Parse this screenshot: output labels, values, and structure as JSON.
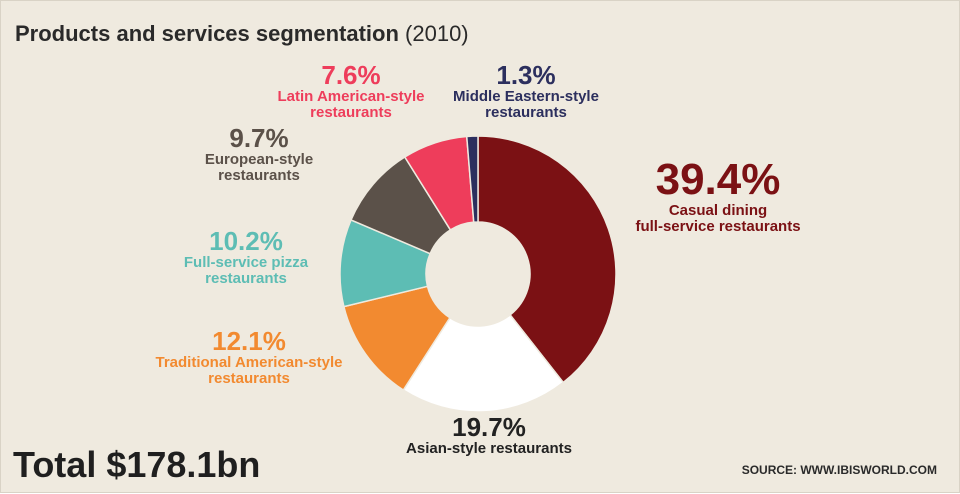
{
  "header": {
    "title": "Products and services segmentation",
    "year": "(2010)"
  },
  "footer": {
    "total": "Total $178.1bn",
    "source": "SOURCE: WWW.IBISWORLD.COM"
  },
  "chart_data": {
    "type": "pie",
    "variant": "donut",
    "title": "Products and services segmentation (2010)",
    "slices": [
      {
        "pct_label": "39.4%",
        "name_lines": [
          "Casual dining",
          "full-service restaurants"
        ],
        "value": 39.4,
        "color": "#7b1114"
      },
      {
        "pct_label": "19.7%",
        "name_lines": [
          "Asian-style restaurants"
        ],
        "value": 19.7,
        "color": "#ffffff"
      },
      {
        "pct_label": "12.1%",
        "name_lines": [
          "Traditional American-style",
          "restaurants"
        ],
        "value": 12.1,
        "color": "#f28a30"
      },
      {
        "pct_label": "10.2%",
        "name_lines": [
          "Full-service pizza",
          "restaurants"
        ],
        "value": 10.2,
        "color": "#5dbdb4"
      },
      {
        "pct_label": "9.7%",
        "name_lines": [
          "European-style",
          "restaurants"
        ],
        "value": 9.7,
        "color": "#5b5149"
      },
      {
        "pct_label": "7.6%",
        "name_lines": [
          "Latin American-style",
          "restaurants"
        ],
        "value": 7.6,
        "color": "#ee3d5b"
      },
      {
        "pct_label": "1.3%",
        "name_lines": [
          "Middle Eastern-style",
          "restaurants"
        ],
        "value": 1.3,
        "color": "#2c2f5e"
      }
    ],
    "label_colors": [
      "#7b1114",
      "#222222",
      "#f28a30",
      "#5dbdb4",
      "#5b5149",
      "#ee3d5b",
      "#2c2f5e"
    ]
  }
}
